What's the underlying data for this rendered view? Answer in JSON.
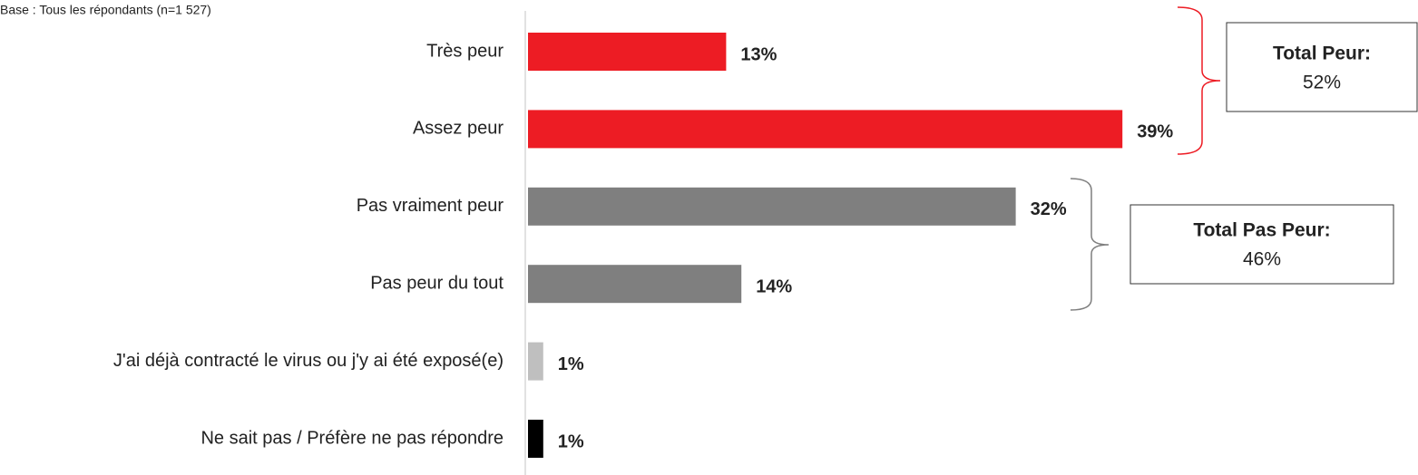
{
  "chart_data": {
    "type": "hbar",
    "subtitle": "Base : Tous les répondants (n=1 527)",
    "categories": [
      "Très peur",
      "Assez peur",
      "Pas vraiment peur",
      "Pas peur du tout",
      "J'ai déjà contracté le virus ou j'y ai été exposé(e)",
      "Ne sait pas /  Préfère ne pas répondre"
    ],
    "values": [
      13,
      39,
      32,
      14,
      1,
      1
    ],
    "value_labels": [
      "13%",
      "39%",
      "32%",
      "14%",
      "1%",
      "1%"
    ],
    "colors": [
      "#ed1c24",
      "#ed1c24",
      "#7f7f7f",
      "#7f7f7f",
      "#bfbfbf",
      "#000000"
    ],
    "annotations": [
      {
        "title": "Total Peur:",
        "text": "52%"
      },
      {
        "title": "Total Pas Peur:",
        "text": "46%"
      }
    ]
  }
}
